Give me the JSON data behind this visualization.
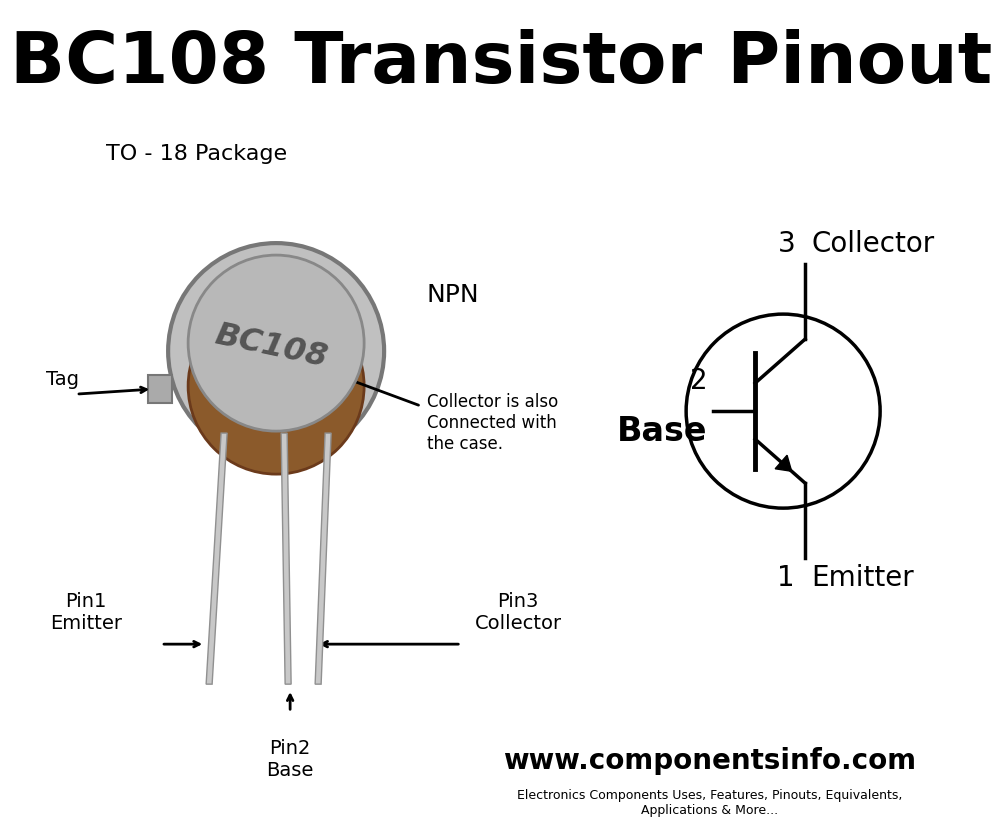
{
  "title": "BC108 Transistor Pinout",
  "title_fontsize": 52,
  "bg_header": "#d8d8d8",
  "bg_main": "#ffffff",
  "package_label": "TO - 18 Package",
  "npn_label": "NPN",
  "collector_note": "Collector is also\nConnected with\nthe case.",
  "tag_label": "Tag",
  "pin1_label": "Pin1\nEmitter",
  "pin2_label": "Pin2\nBase",
  "pin3_label": "Pin3\nCollector",
  "collector_label": "Collector",
  "base_label": "Base",
  "emitter_label": "Emitter",
  "num1": "1",
  "num2": "2",
  "num3": "3",
  "website": "www.componentsinfo.com",
  "website_sub": "Electronics Components Uses, Features, Pinouts, Equivalents,\nApplications & More...",
  "line_color": "#000000",
  "text_color": "#000000",
  "footer_bg": "#cccccc",
  "can_color": "#c0c0c0",
  "cap_color": "#b8b8b8",
  "brown_color": "#8B5A2B",
  "lead_color": "#c8c8c8"
}
